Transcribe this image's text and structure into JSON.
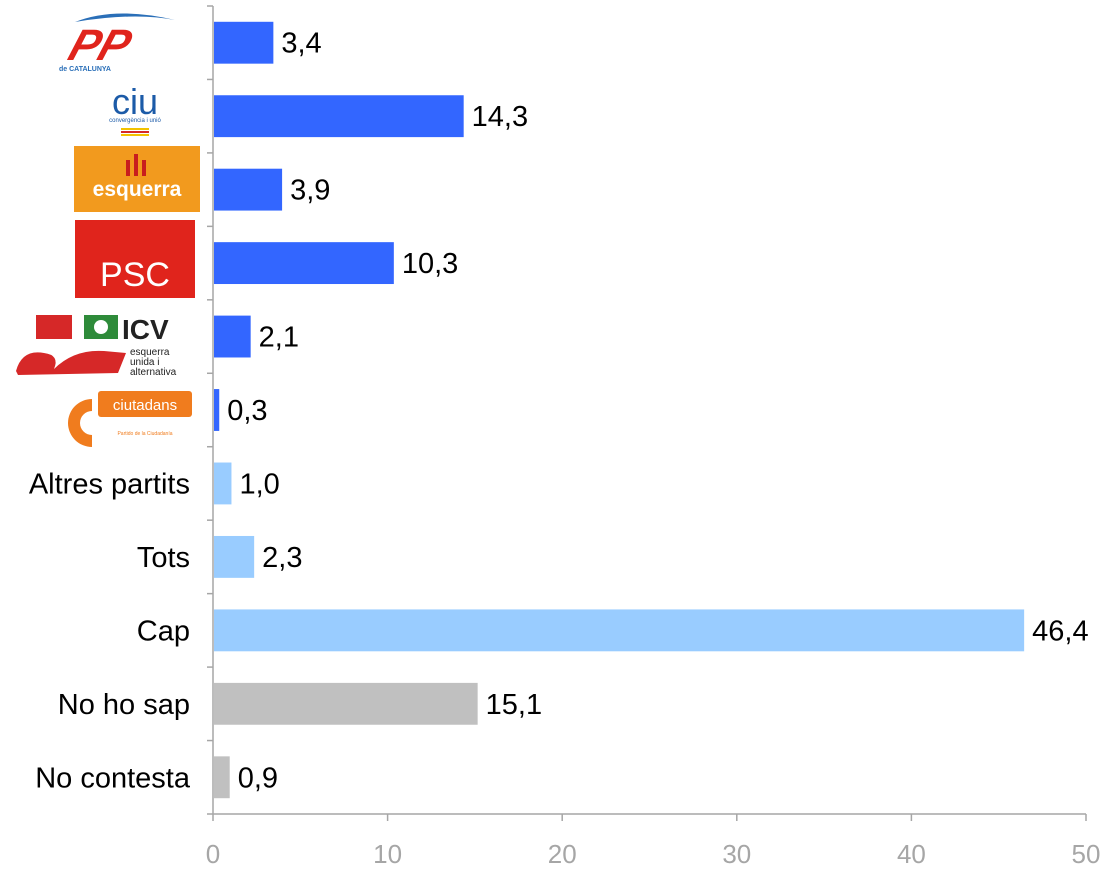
{
  "chart_data": {
    "type": "bar",
    "orientation": "horizontal",
    "categories": [
      "PP",
      "CiU",
      "Esquerra",
      "PSC",
      "ICV-EUiA",
      "Ciutadans",
      "Altres partits",
      "Tots",
      "Cap",
      "No ho sap",
      "No contesta"
    ],
    "category_labels": [
      "",
      "",
      "",
      "",
      "",
      "",
      "Altres partits",
      "Tots",
      "Cap",
      "No ho sap",
      "No contesta"
    ],
    "values": [
      3.4,
      14.3,
      3.9,
      10.3,
      2.1,
      0.3,
      1.0,
      2.3,
      46.4,
      15.1,
      0.9
    ],
    "value_labels": [
      "3,4",
      "14,3",
      "3,9",
      "10,3",
      "2,1",
      "0,3",
      "1,0",
      "2,3",
      "46,4",
      "15,1",
      "0,9"
    ],
    "bar_colors": [
      "#3366ff",
      "#3366ff",
      "#3366ff",
      "#3366ff",
      "#3366ff",
      "#3366ff",
      "#99ccff",
      "#99ccff",
      "#99ccff",
      "#c0c0c0",
      "#c0c0c0"
    ],
    "xlim": [
      0,
      50
    ],
    "xticks": [
      0,
      10,
      20,
      30,
      40,
      50
    ],
    "xtick_labels": [
      "0",
      "10",
      "20",
      "30",
      "40",
      "50"
    ],
    "title": "",
    "xlabel": "",
    "ylabel": "",
    "grid": false,
    "legend": "none"
  },
  "logos": {
    "pp": {
      "text": "PP",
      "small_text": "de CATALUNYA",
      "color": "#e0241c",
      "accent": "#2a6fb8"
    },
    "ciu": {
      "text": "ciu",
      "small_text": "convergència i unió",
      "color": "#1c5ba8"
    },
    "esquerra": {
      "text": "esquerra",
      "bg": "#f29a1e"
    },
    "psc": {
      "text": "PSC",
      "bg": "#e0241c"
    },
    "icv": {
      "text": "ICV",
      "line1": "esquerra",
      "line2": "unida i",
      "line3": "alternativa",
      "color": "#d62828"
    },
    "ciutadans": {
      "text": "ciutadans",
      "small_text": "Partido de la Ciudadanía",
      "color": "#f07c1e"
    }
  }
}
